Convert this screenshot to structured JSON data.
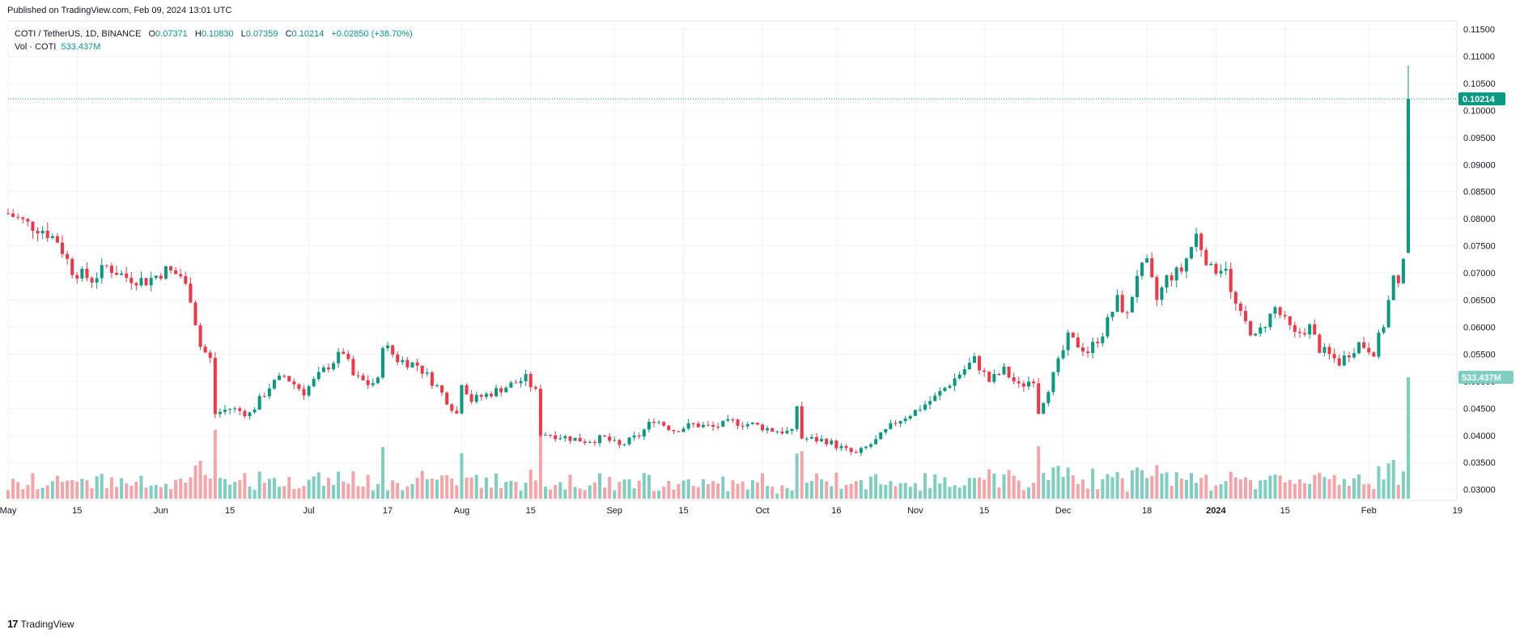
{
  "header": {
    "published": "Published on TradingView.com, Feb 09, 2024 13:01 UTC"
  },
  "legend": {
    "symbol": "COTI / TetherUS, 1D, BINANCE",
    "open_label": "O",
    "open": "0.07371",
    "high_label": "H",
    "high": "0.10830",
    "low_label": "L",
    "low": "0.07359",
    "close_label": "C",
    "close": "0.10214",
    "change": "+0.02850 (+38.70%)",
    "vol_label": "Vol · COTI",
    "vol": "533.437M"
  },
  "footer": {
    "brand": "TradingView",
    "logo_text": "17"
  },
  "colors": {
    "up": "#089981",
    "down": "#f23645",
    "vol_up": "#7fcfc1",
    "vol_down": "#f7a4a9",
    "grid": "#f0f3fa",
    "price_line": "#089981"
  },
  "chart_data": {
    "type": "candlestick",
    "timeframe": "1D",
    "x_range": [
      "2023-05-01",
      "2024-02-09"
    ],
    "y_range": [
      0.0295,
      0.1165
    ],
    "y_ticks": [
      "0.11500",
      "0.11000",
      "0.10500",
      "0.10000",
      "0.09500",
      "0.09000",
      "0.08500",
      "0.08000",
      "0.07500",
      "0.07000",
      "0.06500",
      "0.06000",
      "0.05500",
      "0.05000",
      "0.04500",
      "0.04000",
      "0.03500",
      "0.03000"
    ],
    "x_ticks": [
      {
        "date": "2023-05-01",
        "label": "May",
        "bold": false
      },
      {
        "date": "2023-05-15",
        "label": "15",
        "bold": false
      },
      {
        "date": "2023-06-01",
        "label": "Jun",
        "bold": false
      },
      {
        "date": "2023-06-15",
        "label": "15",
        "bold": false
      },
      {
        "date": "2023-07-01",
        "label": "Jul",
        "bold": false
      },
      {
        "date": "2023-07-17",
        "label": "17",
        "bold": false
      },
      {
        "date": "2023-08-01",
        "label": "Aug",
        "bold": false
      },
      {
        "date": "2023-08-15",
        "label": "15",
        "bold": false
      },
      {
        "date": "2023-09-01",
        "label": "Sep",
        "bold": false
      },
      {
        "date": "2023-09-15",
        "label": "15",
        "bold": false
      },
      {
        "date": "2023-10-01",
        "label": "Oct",
        "bold": false
      },
      {
        "date": "2023-10-16",
        "label": "16",
        "bold": false
      },
      {
        "date": "2023-11-01",
        "label": "Nov",
        "bold": false
      },
      {
        "date": "2023-11-15",
        "label": "15",
        "bold": false
      },
      {
        "date": "2023-12-01",
        "label": "Dec",
        "bold": false
      },
      {
        "date": "2023-12-18",
        "label": "18",
        "bold": false
      },
      {
        "date": "2024-01-01",
        "label": "2024",
        "bold": true
      },
      {
        "date": "2024-01-15",
        "label": "15",
        "bold": false
      },
      {
        "date": "2024-02-01",
        "label": "Feb",
        "bold": false
      },
      {
        "date": "2024-02-19",
        "label": "19",
        "bold": false
      }
    ],
    "last_price": 0.10214,
    "last_price_label": "0.10214",
    "last_volume_label": "533.437M",
    "volume_series_name": "Vol · COTI",
    "close_path": [
      [
        "2023-05-01",
        0.081
      ],
      [
        "2023-05-05",
        0.079
      ],
      [
        "2023-05-08",
        0.078
      ],
      [
        "2023-05-11",
        0.076
      ],
      [
        "2023-05-14",
        0.0705
      ],
      [
        "2023-05-18",
        0.0688
      ],
      [
        "2023-05-21",
        0.0712
      ],
      [
        "2023-05-25",
        0.0692
      ],
      [
        "2023-05-29",
        0.0685
      ],
      [
        "2023-06-02",
        0.0705
      ],
      [
        "2023-06-05",
        0.0695
      ],
      [
        "2023-06-07",
        0.0655
      ],
      [
        "2023-06-09",
        0.0565
      ],
      [
        "2023-06-11",
        0.054
      ],
      [
        "2023-06-12",
        0.044
      ],
      [
        "2023-06-15",
        0.045
      ],
      [
        "2023-06-19",
        0.044
      ],
      [
        "2023-06-23",
        0.049
      ],
      [
        "2023-06-26",
        0.051
      ],
      [
        "2023-06-30",
        0.048
      ],
      [
        "2023-07-04",
        0.052
      ],
      [
        "2023-07-08",
        0.0555
      ],
      [
        "2023-07-10",
        0.051
      ],
      [
        "2023-07-13",
        0.0495
      ],
      [
        "2023-07-15",
        0.05
      ],
      [
        "2023-07-16",
        0.057
      ],
      [
        "2023-07-19",
        0.054
      ],
      [
        "2023-07-23",
        0.053
      ],
      [
        "2023-07-27",
        0.049
      ],
      [
        "2023-07-31",
        0.044
      ],
      [
        "2023-08-01",
        0.05
      ],
      [
        "2023-08-03",
        0.0465
      ],
      [
        "2023-08-06",
        0.0475
      ],
      [
        "2023-08-10",
        0.049
      ],
      [
        "2023-08-14",
        0.0505
      ],
      [
        "2023-08-16",
        0.048
      ],
      [
        "2023-08-17",
        0.0405
      ],
      [
        "2023-08-20",
        0.04
      ],
      [
        "2023-08-26",
        0.039
      ],
      [
        "2023-08-30",
        0.0395
      ],
      [
        "2023-09-02",
        0.038
      ],
      [
        "2023-09-06",
        0.04
      ],
      [
        "2023-09-09",
        0.043
      ],
      [
        "2023-09-13",
        0.041
      ],
      [
        "2023-09-17",
        0.042
      ],
      [
        "2023-09-21",
        0.0415
      ],
      [
        "2023-09-25",
        0.0425
      ],
      [
        "2023-09-29",
        0.042
      ],
      [
        "2023-10-03",
        0.041
      ],
      [
        "2023-10-07",
        0.0405
      ],
      [
        "2023-10-08",
        0.0455
      ],
      [
        "2023-10-09",
        0.0395
      ],
      [
        "2023-10-14",
        0.039
      ],
      [
        "2023-10-18",
        0.0372
      ],
      [
        "2023-10-20",
        0.0365
      ],
      [
        "2023-10-24",
        0.039
      ],
      [
        "2023-10-28",
        0.0425
      ],
      [
        "2023-11-01",
        0.0445
      ],
      [
        "2023-11-05",
        0.047
      ],
      [
        "2023-11-09",
        0.0505
      ],
      [
        "2023-11-13",
        0.054
      ],
      [
        "2023-11-16",
        0.05
      ],
      [
        "2023-11-19",
        0.052
      ],
      [
        "2023-11-22",
        0.049
      ],
      [
        "2023-11-25",
        0.0505
      ],
      [
        "2023-11-26",
        0.0445
      ],
      [
        "2023-11-29",
        0.051
      ],
      [
        "2023-12-02",
        0.058
      ],
      [
        "2023-12-06",
        0.0555
      ],
      [
        "2023-12-09",
        0.059
      ],
      [
        "2023-12-12",
        0.065
      ],
      [
        "2023-12-14",
        0.062
      ],
      [
        "2023-12-16",
        0.07
      ],
      [
        "2023-12-18",
        0.0715
      ],
      [
        "2023-12-20",
        0.065
      ],
      [
        "2023-12-22",
        0.069
      ],
      [
        "2023-12-25",
        0.0705
      ],
      [
        "2023-12-28",
        0.077
      ],
      [
        "2023-12-31",
        0.0705
      ],
      [
        "2024-01-03",
        0.0715
      ],
      [
        "2024-01-04",
        0.066
      ],
      [
        "2024-01-06",
        0.062
      ],
      [
        "2024-01-09",
        0.058
      ],
      [
        "2024-01-13",
        0.0635
      ],
      [
        "2024-01-17",
        0.0585
      ],
      [
        "2024-01-20",
        0.06
      ],
      [
        "2024-01-22",
        0.056
      ],
      [
        "2024-01-26",
        0.0535
      ],
      [
        "2024-01-30",
        0.057
      ],
      [
        "2024-02-02",
        0.0555
      ],
      [
        "2024-02-04",
        0.0605
      ],
      [
        "2024-02-06",
        0.069
      ],
      [
        "2024-02-07",
        0.067
      ],
      [
        "2024-02-08",
        0.0737
      ],
      [
        "2024-02-09",
        0.10214
      ]
    ]
  }
}
